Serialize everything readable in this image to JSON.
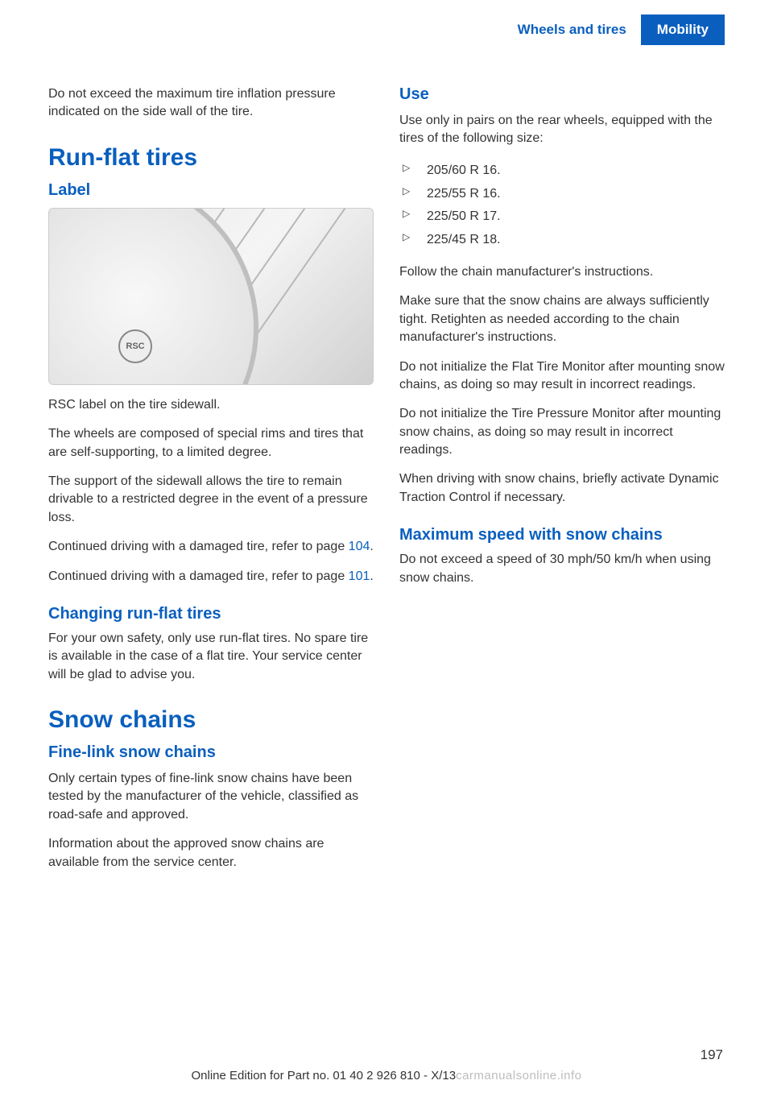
{
  "header": {
    "chapter": "Wheels and tires",
    "section": "Mobility"
  },
  "left": {
    "para_intro": "Do not exceed the maximum tire inflation pres­sure indicated on the side wall of the tire.",
    "h1_runflat": "Run-flat tires",
    "h2_label": "Label",
    "rsc_badge": "RSC",
    "para_rsc_caption": "RSC label on the tire sidewall.",
    "para_wheels": "The wheels are composed of special rims and tires that are self-supporting, to a limited de­gree.",
    "para_support": "The support of the sidewall allows the tire to remain drivable to a restricted degree in the event of a pressure loss.",
    "para_cont1_a": "Continued driving with a damaged tire, refer to page ",
    "para_cont1_link": "104",
    "para_cont1_b": ".",
    "para_cont2_a": "Continued driving with a damaged tire, refer to page ",
    "para_cont2_link": "101",
    "para_cont2_b": ".",
    "h2_changing": "Changing run-flat tires",
    "para_changing": "For your own safety, only use run-flat tires. No spare tire is available in the case of a flat tire. Your service center will be glad to advise you.",
    "h1_snow": "Snow chains",
    "h2_finelink": "Fine-link snow chains",
    "para_finelink1": "Only certain types of fine-link snow chains have been tested by the manufacturer of the vehicle, classified as road-safe and approved.",
    "para_finelink2": "Information about the approved snow chains are available from the service center."
  },
  "right": {
    "h2_use": "Use",
    "para_use_intro": "Use only in pairs on the rear wheels, equipped with the tires of the following size:",
    "sizes": [
      "205/60 R 16.",
      "225/55 R 16.",
      "225/50 R 17.",
      "225/45 R 18."
    ],
    "para_follow": "Follow the chain manufacturer's instructions.",
    "para_tight": "Make sure that the snow chains are always sufficiently tight. Retighten as needed accord­ing to the chain manufacturer's instructions.",
    "para_ftm": "Do not initialize the Flat Tire Monitor after mounting snow chains, as doing so may result in incorrect readings.",
    "para_tpm": "Do not initialize the Tire Pressure Monitor after mounting snow chains, as doing so may result in incorrect readings.",
    "para_dtc": "When driving with snow chains, briefly activate Dynamic Traction Control if necessary.",
    "h2_maxspeed": "Maximum speed with snow chains",
    "para_maxspeed": "Do not exceed a speed of 30 mph/50 km/h when using snow chains."
  },
  "footer": {
    "line_a": "Online Edition for Part no. 01 40 2 926 810 - X/13",
    "watermark": "carmanualsonline.info",
    "page_number": "197"
  },
  "colors": {
    "blue": "#0a5fbe",
    "text": "#333333",
    "watermark": "#bdbdbd"
  }
}
